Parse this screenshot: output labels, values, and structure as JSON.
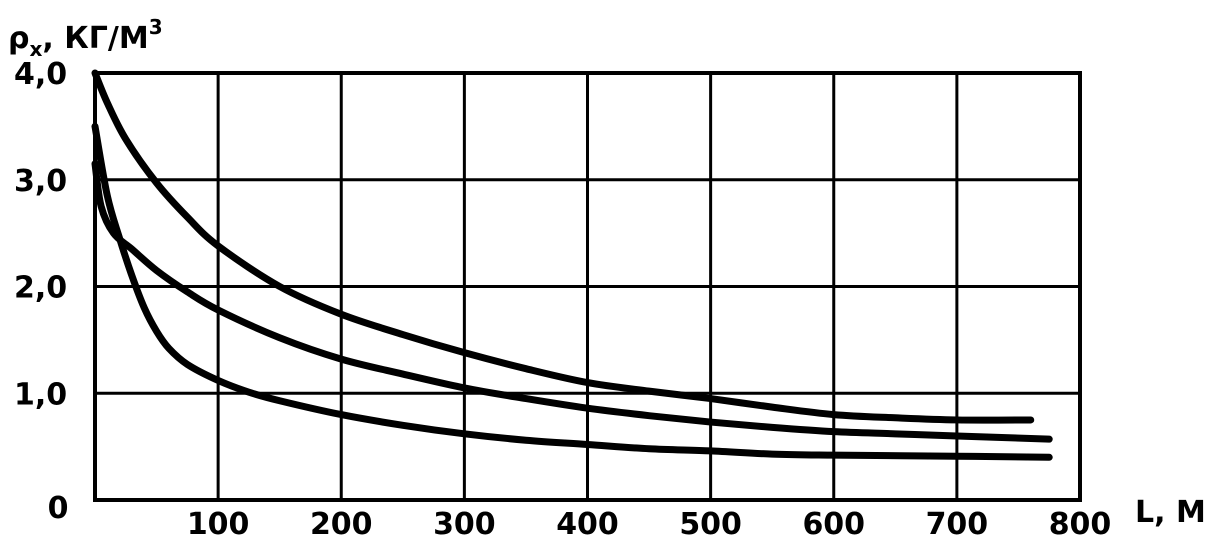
{
  "chart_data": {
    "type": "line",
    "ylabel_main": "ρ",
    "ylabel_sub": "х",
    "ylabel_unit": ", КГ/М",
    "ylabel_exp": "3",
    "xlabel": "L, М",
    "xlim": [
      0,
      800
    ],
    "ylim": [
      0,
      4.0
    ],
    "grid": true,
    "x_ticks": [
      {
        "value": 0,
        "label": "0"
      },
      {
        "value": 100,
        "label": "100"
      },
      {
        "value": 200,
        "label": "200"
      },
      {
        "value": 300,
        "label": "300"
      },
      {
        "value": 400,
        "label": "400"
      },
      {
        "value": 500,
        "label": "500"
      },
      {
        "value": 600,
        "label": "600"
      },
      {
        "value": 700,
        "label": "700"
      },
      {
        "value": 800,
        "label": "800"
      }
    ],
    "y_ticks": [
      {
        "value": 1.0,
        "label": "1,0"
      },
      {
        "value": 2.0,
        "label": "2,0"
      },
      {
        "value": 3.0,
        "label": "3,0"
      },
      {
        "value": 4.0,
        "label": "4,0"
      }
    ],
    "series": [
      {
        "x": [
          0,
          10,
          25,
          50,
          75,
          100,
          150,
          200,
          250,
          300,
          350,
          400,
          450,
          500,
          550,
          600,
          650,
          700,
          760
        ],
        "y": [
          4.0,
          3.72,
          3.38,
          2.97,
          2.65,
          2.38,
          2.0,
          1.74,
          1.55,
          1.38,
          1.23,
          1.1,
          1.02,
          0.95,
          0.87,
          0.8,
          0.77,
          0.75,
          0.75
        ]
      },
      {
        "x": [
          0,
          5,
          15,
          30,
          50,
          75,
          100,
          150,
          200,
          250,
          300,
          350,
          400,
          450,
          500,
          550,
          600,
          650,
          700,
          775
        ],
        "y": [
          3.15,
          2.75,
          2.5,
          2.35,
          2.15,
          1.95,
          1.78,
          1.52,
          1.32,
          1.18,
          1.05,
          0.95,
          0.86,
          0.79,
          0.73,
          0.68,
          0.64,
          0.62,
          0.6,
          0.57
        ]
      },
      {
        "x": [
          0,
          10,
          20,
          30,
          40,
          50,
          60,
          75,
          100,
          125,
          150,
          200,
          250,
          300,
          350,
          400,
          450,
          500,
          550,
          600,
          700,
          775
        ],
        "y": [
          3.5,
          2.85,
          2.45,
          2.1,
          1.8,
          1.58,
          1.42,
          1.27,
          1.12,
          1.01,
          0.93,
          0.8,
          0.7,
          0.62,
          0.56,
          0.52,
          0.48,
          0.46,
          0.43,
          0.42,
          0.41,
          0.4
        ]
      }
    ]
  }
}
